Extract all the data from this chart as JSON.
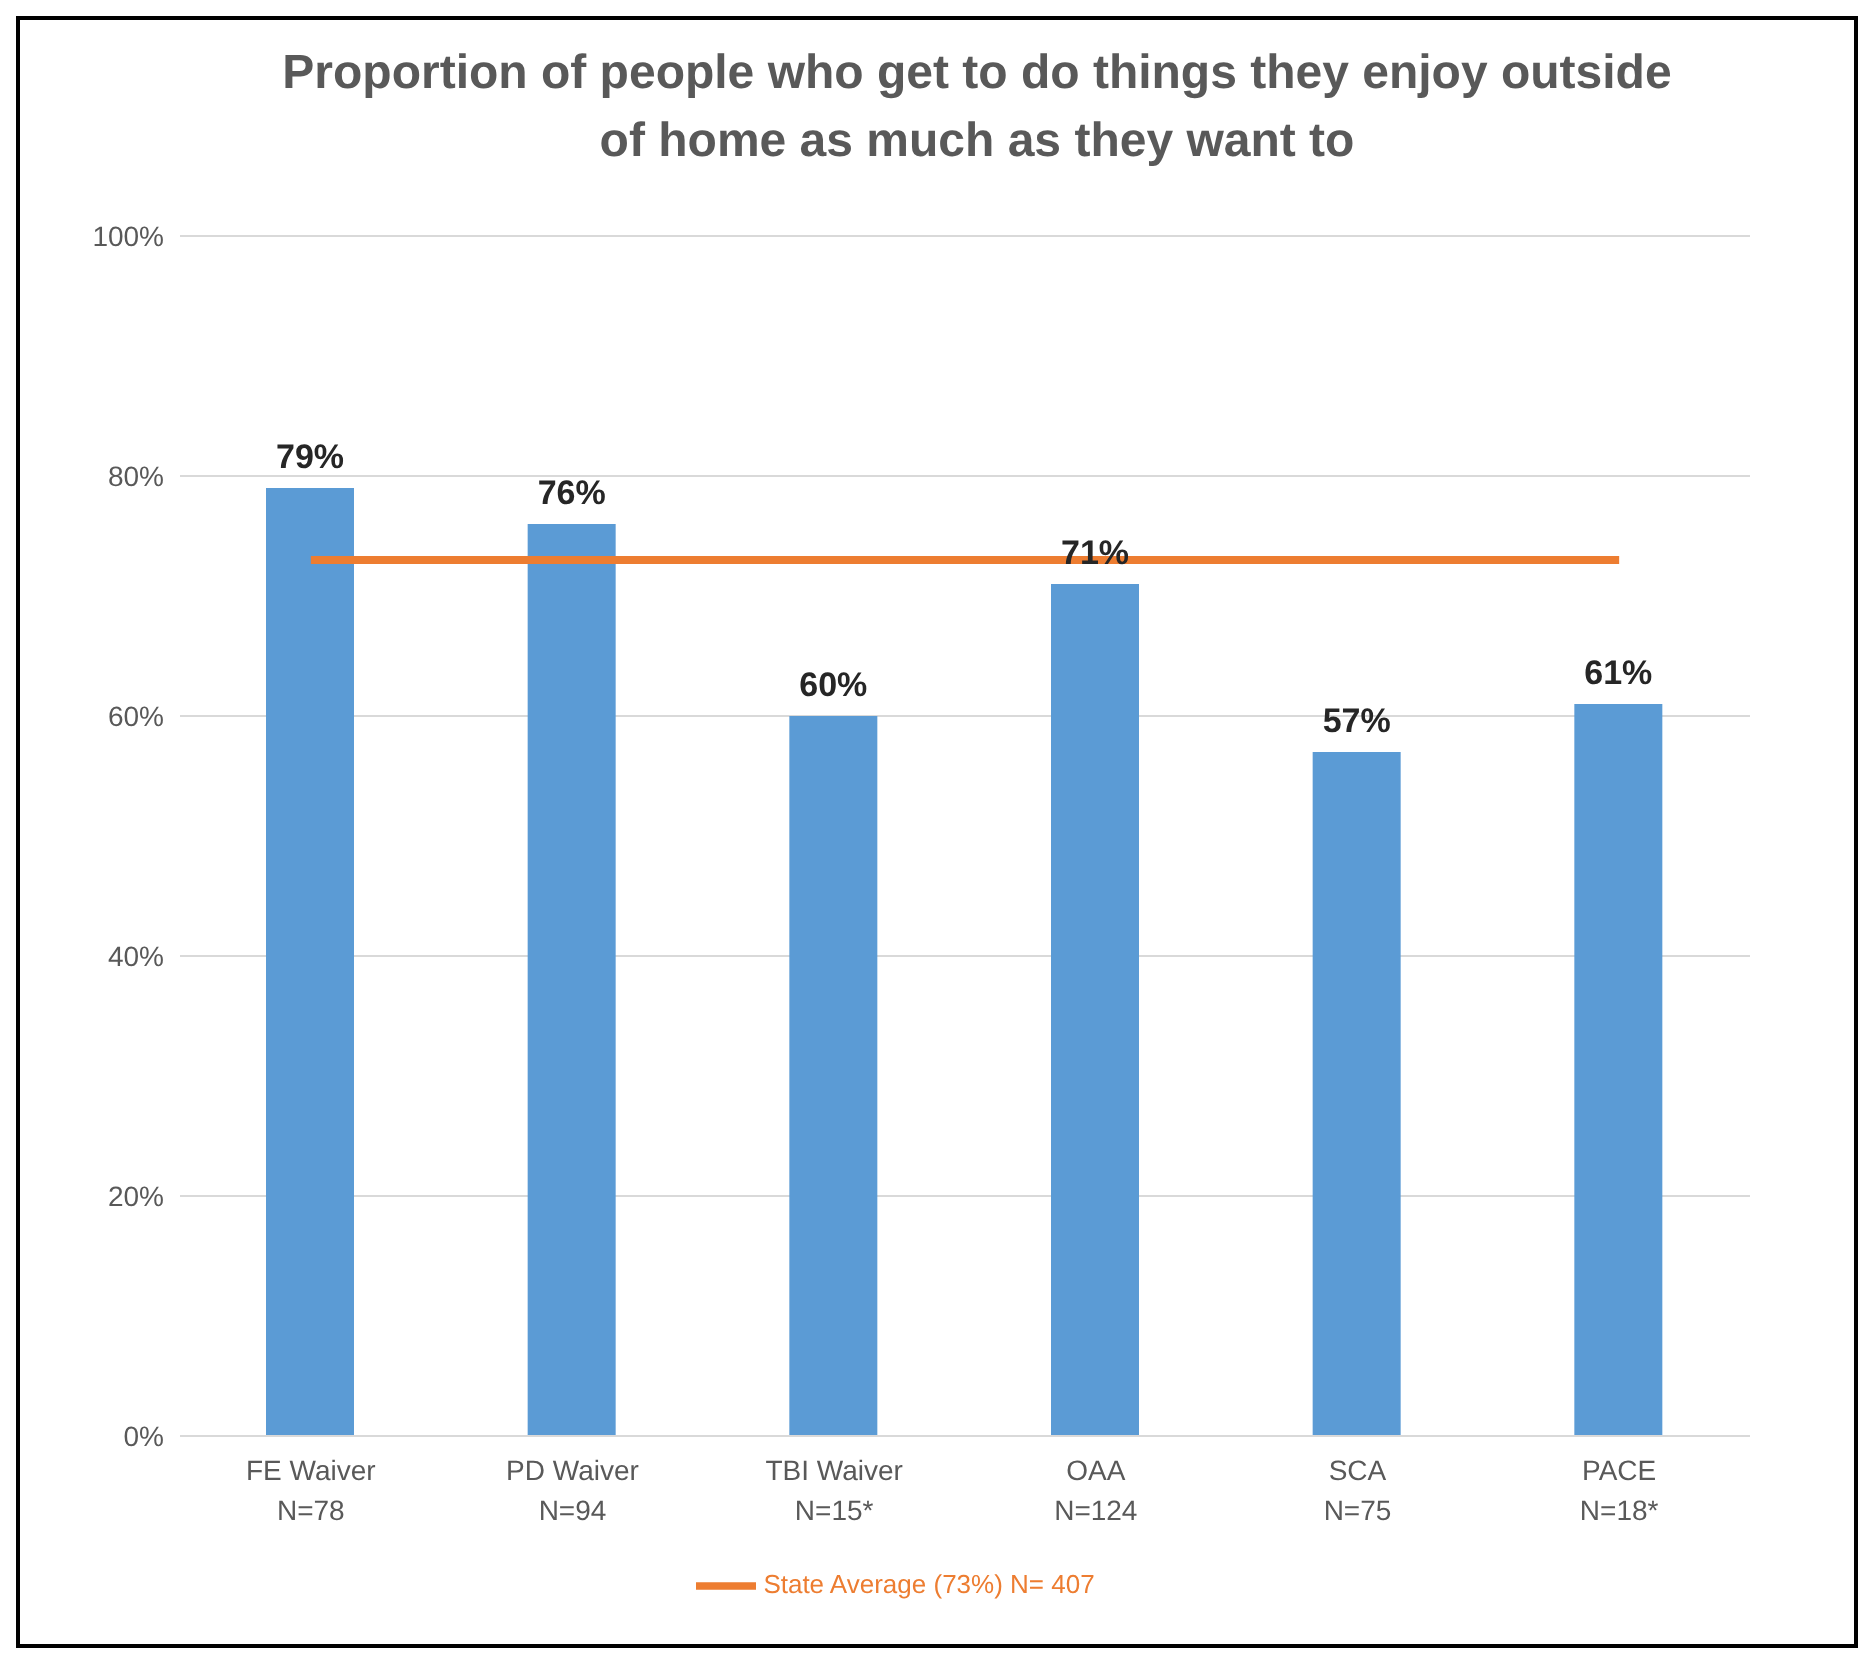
{
  "chart_data": {
    "type": "bar",
    "title": "Proportion of people who get to do things they enjoy outside of home as much as they want to",
    "categories": [
      "FE Waiver\nN=78",
      "PD Waiver\nN=94",
      "TBI Waiver\nN=15*",
      "OAA\nN=124",
      "SCA\nN=75",
      "PACE\nN=18*"
    ],
    "series": [
      {
        "color": "#5b9bd5",
        "values": [
          79,
          76,
          60,
          71,
          57,
          61
        ],
        "value_labels": [
          "79%",
          "76%",
          "60%",
          "71%",
          "57%",
          "61%"
        ]
      },
      {
        "type": "line",
        "name": "State Average (73%) N= 407",
        "color": "#ed7d31",
        "values": [
          73,
          73,
          73,
          73,
          73,
          73
        ]
      }
    ],
    "ylim": [
      0,
      100
    ],
    "yticks": [
      {
        "value": 0,
        "label": "0%"
      },
      {
        "value": 20,
        "label": "20%"
      },
      {
        "value": 40,
        "label": "40%"
      },
      {
        "value": 60,
        "label": "60%"
      },
      {
        "value": 80,
        "label": "80%"
      },
      {
        "value": 100,
        "label": "100%"
      }
    ],
    "grid": "y",
    "legend": "bottom",
    "marker": "none"
  }
}
